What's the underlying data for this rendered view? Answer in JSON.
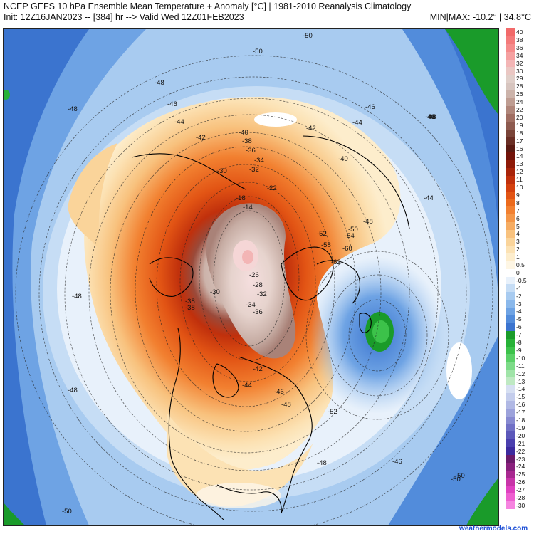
{
  "header": {
    "title": "NCEP GEFS 10 hPa Ensemble Mean Temperature + Anomaly [°C] | 1981-2010 Reanalysis Climatology",
    "subtitle": "Init: 12Z16JAN2023 -- [384] hr --> Valid Wed 12Z01FEB2023",
    "minmax": "MIN|MAX: -10.2° | 34.8°C"
  },
  "credit": "weathermodels.com",
  "colorbar": {
    "levels": [
      "40",
      "38",
      "36",
      "34",
      "32",
      "30",
      "29",
      "28",
      "26",
      "24",
      "22",
      "20",
      "19",
      "18",
      "17",
      "16",
      "14",
      "13",
      "12",
      "11",
      "10",
      "9",
      "8",
      "7",
      "6",
      "5",
      "4",
      "3",
      "2",
      "1",
      "0.5",
      "0",
      "-0.5",
      "-1",
      "-2",
      "-3",
      "-4",
      "-5",
      "-6",
      "-7",
      "-8",
      "-9",
      "-10",
      "-11",
      "-12",
      "-13",
      "-14",
      "-15",
      "-16",
      "-17",
      "-18",
      "-19",
      "-20",
      "-21",
      "-22",
      "-23",
      "-24",
      "-25",
      "-26",
      "-27",
      "-28",
      "-30"
    ],
    "colors": [
      "#f26a6a",
      "#f47a7a",
      "#f58b8b",
      "#f5a0a0",
      "#f3b5b5",
      "#eac7c3",
      "#e0cfc9",
      "#d7c5bf",
      "#ccb3aa",
      "#bf9d92",
      "#b0867a",
      "#a06e62",
      "#8d5a4f",
      "#7a4438",
      "#6a2e24",
      "#5a1a12",
      "#72140a",
      "#8e1a08",
      "#a8240a",
      "#c0300c",
      "#d4400e",
      "#e25414",
      "#ec6a1c",
      "#f28030",
      "#f49648",
      "#f6ac62",
      "#f8c27e",
      "#fad49a",
      "#fce2b4",
      "#fdedcc",
      "#fef6e4",
      "#ffffff",
      "#e8f1fb",
      "#c6ddf5",
      "#a8cbf0",
      "#8ab8eb",
      "#6ea3e4",
      "#528cdb",
      "#3b74cf",
      "#1a9b2a",
      "#27b237",
      "#3cc24a",
      "#5ad067",
      "#7ddb88",
      "#a0e4a8",
      "#bfe9c3",
      "#d6dff2",
      "#c4cdec",
      "#b0b8e4",
      "#9ca2db",
      "#878ad1",
      "#7171c6",
      "#5c58ba",
      "#4a3fae",
      "#3c2a9e",
      "#6a1a6a",
      "#88207c",
      "#a82890",
      "#c834a8",
      "#e040c0",
      "#ee5ed0",
      "#f684e0"
    ]
  },
  "map": {
    "contour_labels": [
      {
        "text": "-50"
      },
      {
        "text": "-50"
      },
      {
        "text": "-48"
      },
      {
        "text": "-48"
      },
      {
        "text": "-46"
      },
      {
        "text": "-44"
      },
      {
        "text": "-42"
      },
      {
        "text": "-40"
      },
      {
        "text": "-38"
      },
      {
        "text": "-36"
      },
      {
        "text": "-34"
      },
      {
        "text": "-32"
      },
      {
        "text": "-30"
      },
      {
        "text": "-22"
      },
      {
        "text": "-18"
      },
      {
        "text": "-14"
      },
      {
        "text": "-26"
      },
      {
        "text": "-28"
      },
      {
        "text": "-30"
      },
      {
        "text": "-32"
      },
      {
        "text": "-34"
      },
      {
        "text": "-36"
      },
      {
        "text": "-38"
      },
      {
        "text": "-42"
      },
      {
        "text": "-44"
      },
      {
        "text": "-46"
      },
      {
        "text": "-48"
      },
      {
        "text": "-52"
      },
      {
        "text": "-48"
      },
      {
        "text": "-46"
      },
      {
        "text": "-50"
      },
      {
        "text": "-50"
      },
      {
        "text": "-48"
      },
      {
        "text": "-48"
      },
      {
        "text": "-46"
      },
      {
        "text": "-44"
      },
      {
        "text": "-42"
      },
      {
        "text": "-40"
      },
      {
        "text": "-44"
      },
      {
        "text": "-46"
      },
      {
        "text": "-48"
      },
      {
        "text": "-52"
      },
      {
        "text": "-50"
      },
      {
        "text": "-58"
      },
      {
        "text": "-60"
      },
      {
        "text": "-62"
      },
      {
        "text": "-54"
      },
      {
        "text": "-48"
      },
      {
        "text": "-38"
      },
      {
        "text": "-50"
      },
      {
        "text": "-48"
      }
    ]
  }
}
